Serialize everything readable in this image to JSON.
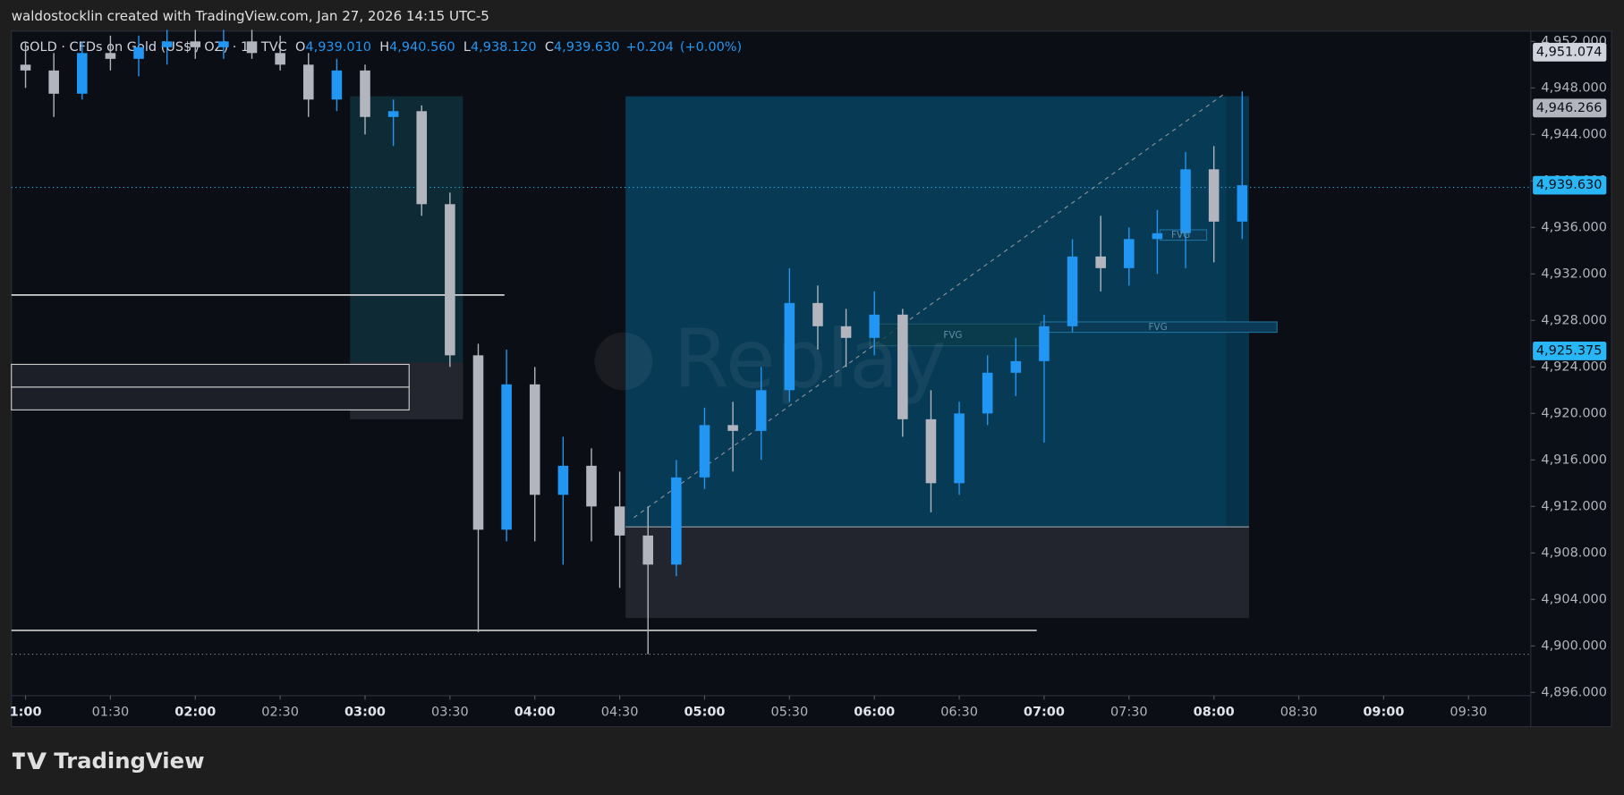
{
  "page": {
    "header": "waldostocklin created with TradingView.com, Jan 27, 2026 14:15 UTC-5",
    "brand": "TradingView",
    "watermark": "Replay"
  },
  "chart_data": {
    "type": "candlestick",
    "symbol": "GOLD · CFDs on Gold (US$ / OZ) · 1 · TVC",
    "legend": [
      {
        "key": "O",
        "value": 4939.01,
        "label": "4,939.010"
      },
      {
        "key": "H",
        "value": 4940.56,
        "label": "4,940.560"
      },
      {
        "key": "L",
        "value": 4938.12,
        "label": "4,938.120"
      },
      {
        "key": "C",
        "value": 4939.63,
        "label": "4,939.630"
      }
    ],
    "change": [
      {
        "value": 0.204,
        "label": "+0.204"
      },
      {
        "value": 0,
        "label": "(+0.00%)"
      }
    ],
    "up_color": "#2196f3",
    "down_color": "#b2b5be",
    "xlim": [
      "00:55",
      "09:52"
    ],
    "xticks": [
      "1:00",
      "01:30",
      "02:00",
      "02:30",
      "03:00",
      "03:30",
      "04:00",
      "04:30",
      "05:00",
      "05:30",
      "06:00",
      "06:30",
      "07:00",
      "07:30",
      "08:00",
      "08:30",
      "09:00",
      "09:30"
    ],
    "ylim": [
      4895.73,
      4952.89
    ],
    "yticks": [
      {
        "value": 4952,
        "label": "4,952.000"
      },
      {
        "value": 4948,
        "label": "4,948.000"
      },
      {
        "value": 4944,
        "label": "4,944.000"
      },
      {
        "value": 4940,
        "label": "4,940.000"
      },
      {
        "value": 4936,
        "label": "4,936.000"
      },
      {
        "value": 4932,
        "label": "4,932.000"
      },
      {
        "value": 4928,
        "label": "4,928.000"
      },
      {
        "value": 4924,
        "label": "4,924.000"
      },
      {
        "value": 4920,
        "label": "4,920.000"
      },
      {
        "value": 4916,
        "label": "4,916.000"
      },
      {
        "value": 4912,
        "label": "4,912.000"
      },
      {
        "value": 4908,
        "label": "4,908.000"
      },
      {
        "value": 4904,
        "label": "4,904.000"
      },
      {
        "value": 4900,
        "label": "4,900.000"
      },
      {
        "value": 4896,
        "label": "4,896.000"
      }
    ],
    "price_labels": [
      {
        "value": 4951.074,
        "label": "4,951.074",
        "color": "#d1d4dc"
      },
      {
        "value": 4946.266,
        "label": "4,946.266",
        "color": "#b2b5be"
      },
      {
        "value": 4939.63,
        "label": "4,939.630",
        "color": "#29b6f6"
      },
      {
        "value": 4925.375,
        "label": "4,925.375",
        "color": "#29b6f6"
      }
    ],
    "annotations": [
      "FVG",
      "FVG",
      "FVG"
    ],
    "candles": {
      "x": [
        "01:00",
        "01:10",
        "01:20",
        "01:30",
        "01:40",
        "01:50",
        "02:00",
        "02:10",
        "02:20",
        "02:30",
        "02:40",
        "02:50",
        "03:00",
        "03:10",
        "03:20",
        "03:30",
        "03:40",
        "03:50",
        "04:00",
        "04:10",
        "04:20",
        "04:30",
        "04:40",
        "04:50",
        "05:00",
        "05:10",
        "05:20",
        "05:30",
        "05:40",
        "05:50",
        "06:00",
        "06:10",
        "06:20",
        "06:30",
        "06:40",
        "06:50",
        "07:00",
        "07:10",
        "07:20",
        "07:30",
        "07:40",
        "07:50",
        "08:00",
        "08:10"
      ],
      "open": [
        4950,
        4949.5,
        4947.5,
        4951,
        4950.5,
        4951.5,
        4952,
        4951.5,
        4952,
        4951,
        4950,
        4947,
        4949.5,
        4945.5,
        4946,
        4938,
        4925,
        4910,
        4922.5,
        4913,
        4915.5,
        4912,
        4909.5,
        4907,
        4914.5,
        4919,
        4918.5,
        4922,
        4929.5,
        4927.5,
        4926.5,
        4928.5,
        4919.5,
        4914,
        4920,
        4923.5,
        4924.5,
        4927.5,
        4933.5,
        4932.5,
        4935,
        4935.5,
        4941,
        4936.5
      ],
      "high": [
        4952,
        4951,
        4952,
        4952.5,
        4952.5,
        4953,
        4953,
        4953,
        4953,
        4952.5,
        4951,
        4950.5,
        4950,
        4947,
        4946.5,
        4939,
        4926,
        4925.5,
        4924,
        4918,
        4917,
        4915,
        4912,
        4916,
        4920.5,
        4921,
        4924,
        4932.5,
        4931,
        4929,
        4930.5,
        4929,
        4922,
        4921,
        4925,
        4926.5,
        4928.5,
        4935,
        4937,
        4936,
        4937.5,
        4942.5,
        4943,
        4947.7
      ],
      "low": [
        4948,
        4945.5,
        4947,
        4949.5,
        4949,
        4950,
        4950.5,
        4950.5,
        4950.5,
        4949.5,
        4945.5,
        4946,
        4944,
        4943,
        4937,
        4924,
        4901.2,
        4909,
        4909,
        4907,
        4909,
        4905,
        4899.3,
        4906,
        4913.5,
        4915,
        4916,
        4921,
        4925.5,
        4924,
        4925,
        4918,
        4911.5,
        4913,
        4919,
        4921.5,
        4917.5,
        4927,
        4930.5,
        4931,
        4932,
        4932.5,
        4933,
        4935
      ],
      "close": [
        4949.5,
        4947.5,
        4951,
        4950.5,
        4951.5,
        4952,
        4951.5,
        4952,
        4951,
        4950,
        4947,
        4949.5,
        4945.5,
        4946,
        4938,
        4925,
        4910,
        4922.5,
        4913,
        4915.5,
        4912,
        4909.5,
        4907,
        4914.5,
        4919,
        4918.5,
        4922,
        4929.5,
        4927.5,
        4926.5,
        4928.5,
        4919.5,
        4914,
        4920,
        4923.5,
        4924.5,
        4927.5,
        4933.5,
        4932.5,
        4935,
        4935.5,
        4941,
        4936.5,
        4939.63
      ]
    }
  }
}
